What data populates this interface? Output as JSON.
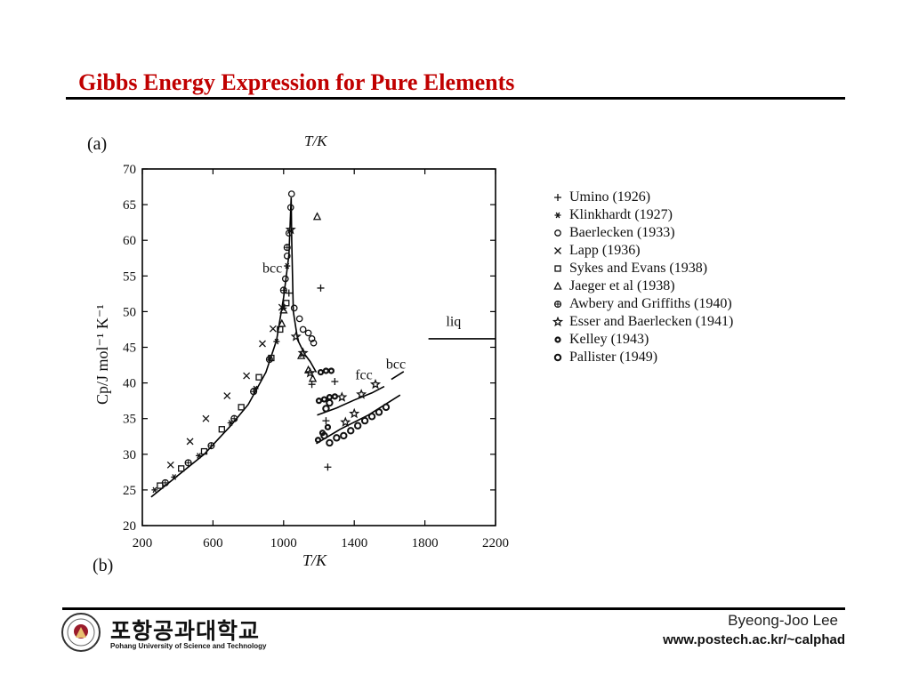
{
  "slide": {
    "title": "Gibbs Energy Expression for Pure Elements",
    "author": "Byeong-Joo Lee",
    "url": "www.postech.ac.kr/~calphad",
    "university_kr": "포항공과대학교",
    "university_en": "Pohang University of Science and Technology",
    "colors": {
      "title": "#c00000",
      "ink": "#111111"
    }
  },
  "chart_data": {
    "type": "scatter",
    "panel_label_top": "(a)",
    "panel_label_bottom": "(b)",
    "top_axis_label": "T/K",
    "xlabel": "T/K",
    "ylabel": "Cp/J mol⁻¹ K⁻¹",
    "xlim": [
      200,
      2200
    ],
    "ylim": [
      20,
      70
    ],
    "xticks": [
      "200",
      "600",
      "1000",
      "1400",
      "1800",
      "2200"
    ],
    "yticks": [
      "20",
      "25",
      "30",
      "35",
      "40",
      "45",
      "50",
      "55",
      "60",
      "65",
      "70"
    ],
    "grid": false,
    "legend_position": "right",
    "annotations": [
      {
        "text": "bcc",
        "x": 880,
        "y": 55.5
      },
      {
        "text": "fcc",
        "x": 1405,
        "y": 40.5
      },
      {
        "text": "bcc",
        "x": 1580,
        "y": 42
      },
      {
        "text": "liq",
        "x": 1920,
        "y": 48
      }
    ],
    "lines": [
      {
        "name": "bcc",
        "points": [
          [
            250,
            24
          ],
          [
            400,
            27
          ],
          [
            550,
            30
          ],
          [
            700,
            34
          ],
          [
            800,
            37
          ],
          [
            900,
            41.5
          ],
          [
            960,
            46
          ],
          [
            1000,
            52
          ],
          [
            1030,
            58
          ],
          [
            1043,
            66
          ],
          [
            1046,
            60
          ],
          [
            1055,
            50
          ],
          [
            1080,
            46
          ],
          [
            1120,
            44
          ],
          [
            1150,
            43
          ],
          [
            1185,
            41.5
          ]
        ]
      },
      {
        "name": "fcc",
        "points": [
          [
            1190,
            35.5
          ],
          [
            1300,
            36.5
          ],
          [
            1400,
            37.6
          ],
          [
            1500,
            38.6
          ],
          [
            1570,
            39.5
          ]
        ]
      },
      {
        "name": "fcc-lower",
        "points": [
          [
            1185,
            31.5
          ],
          [
            1320,
            33.5
          ],
          [
            1480,
            35.5
          ],
          [
            1660,
            38.3
          ]
        ]
      },
      {
        "name": "bcc-high",
        "points": [
          [
            1610,
            40.5
          ],
          [
            1680,
            41.6
          ]
        ]
      },
      {
        "name": "liq",
        "points": [
          [
            1820,
            46.2
          ],
          [
            2200,
            46.2
          ]
        ]
      }
    ],
    "series": [
      {
        "name": "Umino (1926)",
        "marker": "plus",
        "points": [
          [
            1210,
            53.3
          ],
          [
            1250,
            28.2
          ],
          [
            1240,
            34.7
          ],
          [
            1290,
            40.2
          ],
          [
            1160,
            39.8
          ],
          [
            1030,
            52.6
          ]
        ]
      },
      {
        "name": "Klinkhardt (1927)",
        "marker": "star6",
        "points": [
          [
            270,
            25
          ],
          [
            380,
            26.8
          ],
          [
            520,
            29.8
          ],
          [
            700,
            34.4
          ],
          [
            840,
            39.2
          ],
          [
            960,
            45.8
          ],
          [
            1000,
            50.5
          ],
          [
            1020,
            56.4
          ]
        ]
      },
      {
        "name": "Baerlecken (1933)",
        "marker": "circle",
        "points": [
          [
            1010,
            54.6
          ],
          [
            1020,
            57.8
          ],
          [
            1030,
            61
          ],
          [
            1040,
            64.6
          ],
          [
            1045,
            66.5
          ],
          [
            1060,
            50.5
          ],
          [
            1090,
            49
          ],
          [
            1110,
            47.5
          ],
          [
            1140,
            47
          ],
          [
            1160,
            46.2
          ],
          [
            1170,
            45.6
          ]
        ]
      },
      {
        "name": "Lapp (1936)",
        "marker": "x",
        "points": [
          [
            360,
            28.5
          ],
          [
            470,
            31.8
          ],
          [
            560,
            35
          ],
          [
            680,
            38.2
          ],
          [
            790,
            41
          ],
          [
            880,
            45.5
          ],
          [
            940,
            47.6
          ],
          [
            990,
            50.6
          ]
        ]
      },
      {
        "name": "Sykes and Evans (1938)",
        "marker": "square",
        "points": [
          [
            300,
            25.6
          ],
          [
            420,
            28
          ],
          [
            550,
            30.4
          ],
          [
            650,
            33.5
          ],
          [
            760,
            36.6
          ],
          [
            860,
            40.8
          ],
          [
            930,
            43.5
          ],
          [
            980,
            47.5
          ],
          [
            1015,
            51.2
          ]
        ]
      },
      {
        "name": "Jaeger et al (1938)",
        "marker": "triangle",
        "points": [
          [
            1190,
            63.3
          ],
          [
            1100,
            43.8
          ],
          [
            1140,
            41.8
          ],
          [
            1165,
            40.6
          ],
          [
            990,
            48.3
          ],
          [
            1000,
            50.2
          ]
        ]
      },
      {
        "name": "Awbery and Griffiths (1940)",
        "marker": "circleplus",
        "points": [
          [
            330,
            26
          ],
          [
            460,
            28.8
          ],
          [
            590,
            31.2
          ],
          [
            720,
            35
          ],
          [
            830,
            38.8
          ],
          [
            920,
            43.3
          ],
          [
            1000,
            53
          ],
          [
            1020,
            59
          ]
        ]
      },
      {
        "name": "Esser and Baerlecken (1941)",
        "marker": "star5",
        "points": [
          [
            1040,
            61.5
          ],
          [
            1070,
            46.5
          ],
          [
            1110,
            44.2
          ],
          [
            1150,
            41.4
          ],
          [
            1330,
            38
          ],
          [
            1440,
            38.4
          ],
          [
            1520,
            39.8
          ],
          [
            1350,
            34.5
          ],
          [
            1400,
            35.7
          ]
        ]
      },
      {
        "name": "Kelley (1943)",
        "marker": "flower",
        "points": [
          [
            1200,
            37.5
          ],
          [
            1230,
            37.7
          ],
          [
            1260,
            38
          ],
          [
            1290,
            38.1
          ],
          [
            1210,
            41.5
          ],
          [
            1240,
            41.7
          ],
          [
            1270,
            41.7
          ],
          [
            1195,
            32
          ],
          [
            1220,
            33
          ],
          [
            1250,
            33.8
          ]
        ]
      },
      {
        "name": "Pallister (1949)",
        "marker": "ring",
        "points": [
          [
            1260,
            31.6
          ],
          [
            1300,
            32.3
          ],
          [
            1340,
            32.6
          ],
          [
            1380,
            33.3
          ],
          [
            1420,
            34
          ],
          [
            1460,
            34.7
          ],
          [
            1500,
            35.3
          ],
          [
            1540,
            35.9
          ],
          [
            1580,
            36.6
          ],
          [
            1230,
            32.6
          ],
          [
            1240,
            36.4
          ],
          [
            1260,
            37.2
          ]
        ]
      }
    ]
  }
}
